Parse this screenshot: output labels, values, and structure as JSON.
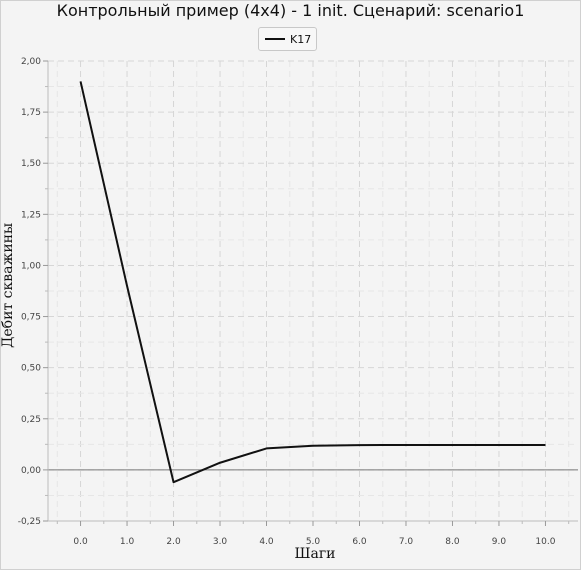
{
  "chart_data": {
    "type": "line",
    "title": "Контрольный пример (4x4) - 1 init. Сценарий: scenario1",
    "xlabel": "Шаги",
    "ylabel": "Дебит скважины",
    "xlim": [
      -0.7,
      10.7
    ],
    "ylim": [
      -0.25,
      2.0
    ],
    "x_ticks": [
      "0.0",
      "1.0",
      "2.0",
      "3.0",
      "4.0",
      "5.0",
      "6.0",
      "7.0",
      "8.0",
      "9.0",
      "10.0"
    ],
    "x_tick_values": [
      0,
      1,
      2,
      3,
      4,
      5,
      6,
      7,
      8,
      9,
      10
    ],
    "y_ticks": [
      "2,00",
      "1,75",
      "1,50",
      "1,25",
      "1,00",
      "0,75",
      "0,50",
      "0,25",
      "0,00",
      "-0,25"
    ],
    "y_tick_values": [
      2.0,
      1.75,
      1.5,
      1.25,
      1.0,
      0.75,
      0.5,
      0.25,
      0.0,
      -0.25
    ],
    "grid": true,
    "legend_position": "top-center",
    "series": [
      {
        "name": "K17",
        "color": "#111111",
        "x": [
          0,
          1,
          2,
          3,
          4,
          5,
          6,
          7,
          8,
          9,
          10
        ],
        "y": [
          1.9,
          0.9,
          -0.06,
          0.035,
          0.105,
          0.118,
          0.121,
          0.122,
          0.122,
          0.122,
          0.122
        ]
      }
    ]
  }
}
